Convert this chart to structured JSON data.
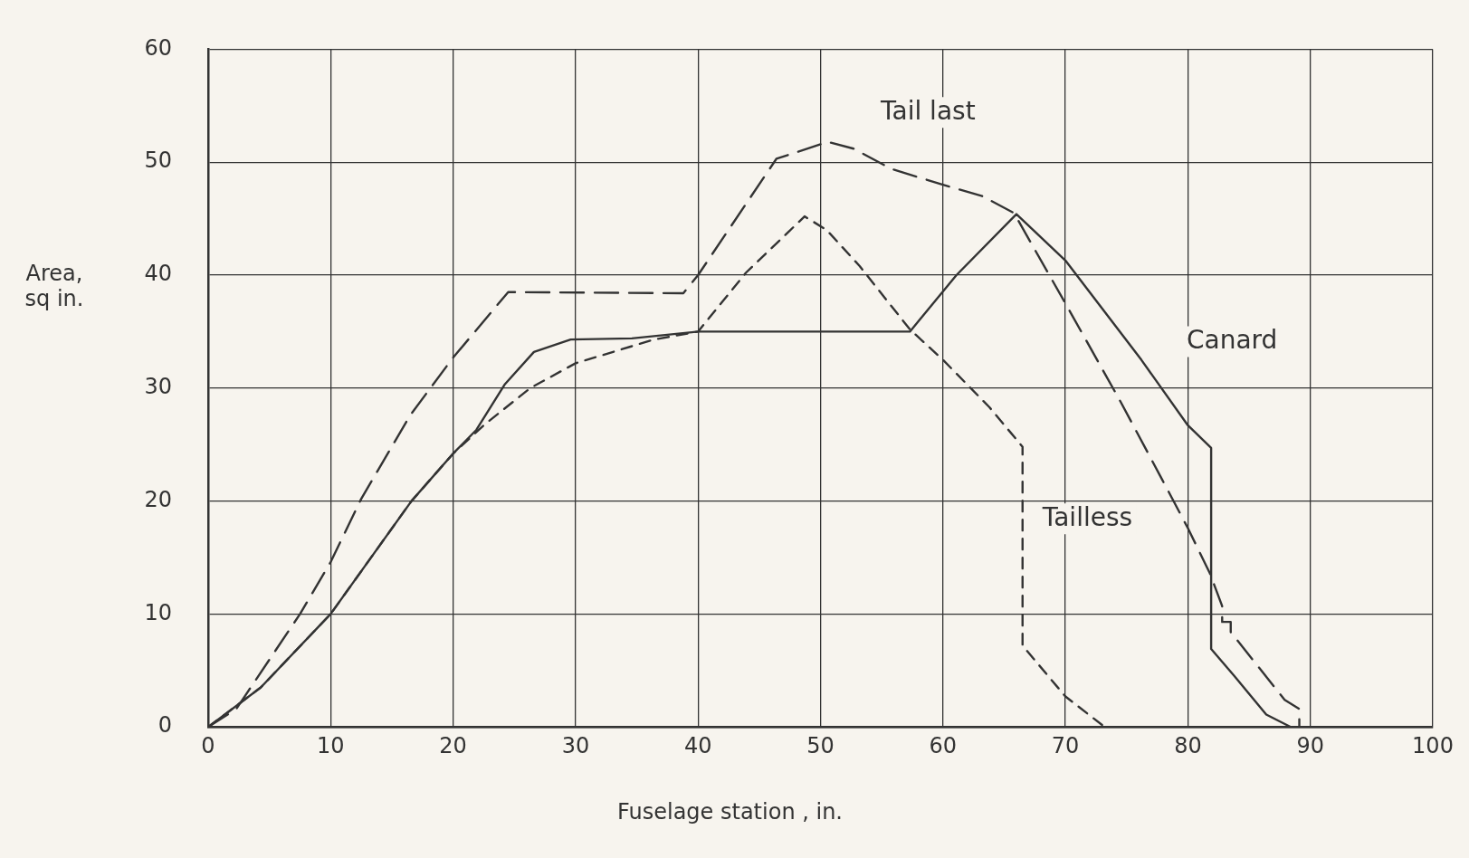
{
  "chart_data": {
    "type": "line",
    "xlabel": "Fuselage station , in.",
    "ylabel": "Area, sq in.",
    "xlim": [
      0,
      100
    ],
    "xticks": [
      0,
      10,
      20,
      30,
      40,
      50,
      60,
      70,
      80,
      90,
      100
    ],
    "ylim": [
      0,
      60
    ],
    "yticks": [
      0,
      10,
      20,
      30,
      40,
      50,
      60
    ],
    "grid": true,
    "legend": false,
    "marker": "none",
    "series": [
      {
        "name": "Tail last",
        "color": "#333333",
        "line_style": "dashed",
        "x": [
          0,
          2.3,
          7.5,
          10,
          12.5,
          16.5,
          20,
          24.5,
          38.8,
          40,
          46.4,
          50.6,
          52.7,
          55.8,
          60,
          63.2,
          65.8,
          70,
          74.5,
          77.9,
          80,
          81.8,
          82.8,
          82.8,
          83.5,
          83.5,
          87.9,
          89.1,
          89.1,
          90
        ],
        "values": [
          0,
          1.6,
          10,
          14.6,
          20.2,
          27.6,
          32.7,
          38.5,
          38.4,
          40,
          50.3,
          51.8,
          51.2,
          49.4,
          48,
          47,
          45.5,
          37.5,
          28.8,
          21.9,
          17.6,
          13.6,
          10.7,
          9.3,
          9.3,
          8.4,
          2.4,
          1.6,
          0,
          0
        ]
      },
      {
        "name": "Canard",
        "color": "#333333",
        "line_style": "solid",
        "x": [
          0,
          4.3,
          10,
          16.6,
          20,
          21.9,
          24.2,
          26.6,
          29.6,
          34.6,
          40,
          50,
          57.3,
          61.1,
          66,
          70,
          76.2,
          80,
          81.9,
          81.9,
          83.8,
          86.4,
          88.4
        ],
        "values": [
          0,
          3.5,
          10,
          20,
          24.2,
          26.3,
          30.3,
          33.2,
          34.3,
          34.4,
          35,
          35,
          35,
          40,
          45.4,
          41.3,
          32.5,
          26.7,
          24.7,
          6.9,
          4.5,
          1.1,
          0
        ]
      },
      {
        "name": "Tailless",
        "color": "#333333",
        "line_style": "dotted",
        "x": [
          0,
          4.3,
          10,
          16.6,
          20,
          22.6,
          26.3,
          30,
          36.4,
          40,
          43.9,
          48.7,
          50.5,
          53.2,
          57.3,
          60,
          63.8,
          66.5,
          66.5,
          70,
          73.2
        ],
        "values": [
          0,
          3.5,
          10,
          20,
          24.2,
          26.8,
          30,
          32.2,
          34.3,
          35,
          40.2,
          45.2,
          44,
          40.8,
          35.2,
          32.5,
          28.3,
          24.8,
          7.2,
          2.7,
          0
        ]
      }
    ]
  }
}
